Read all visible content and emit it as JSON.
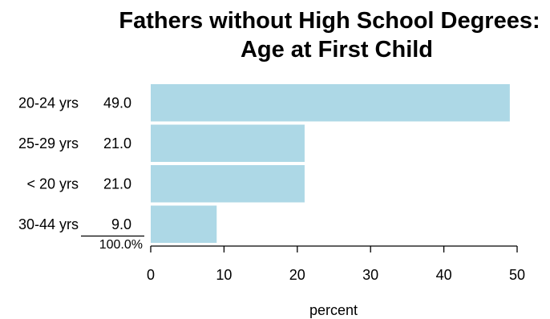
{
  "chart_data": {
    "type": "bar",
    "orientation": "horizontal",
    "title_lines": [
      "Fathers without High School Degrees:",
      "Age at First Child"
    ],
    "categories": [
      "20-24 yrs",
      "25-29 yrs",
      "< 20 yrs",
      "30-44 yrs"
    ],
    "values": [
      49,
      21,
      21,
      9
    ],
    "value_labels": [
      "49.0",
      "21.0",
      "21.0",
      "9.0"
    ],
    "total_label": "100.0%",
    "xlabel": "percent",
    "ylabel": "",
    "xlim": [
      0,
      50
    ],
    "xticks": [
      0,
      10,
      20,
      30,
      40,
      50
    ],
    "bar_color": "#add8e6",
    "grid": false,
    "legend": "none"
  }
}
